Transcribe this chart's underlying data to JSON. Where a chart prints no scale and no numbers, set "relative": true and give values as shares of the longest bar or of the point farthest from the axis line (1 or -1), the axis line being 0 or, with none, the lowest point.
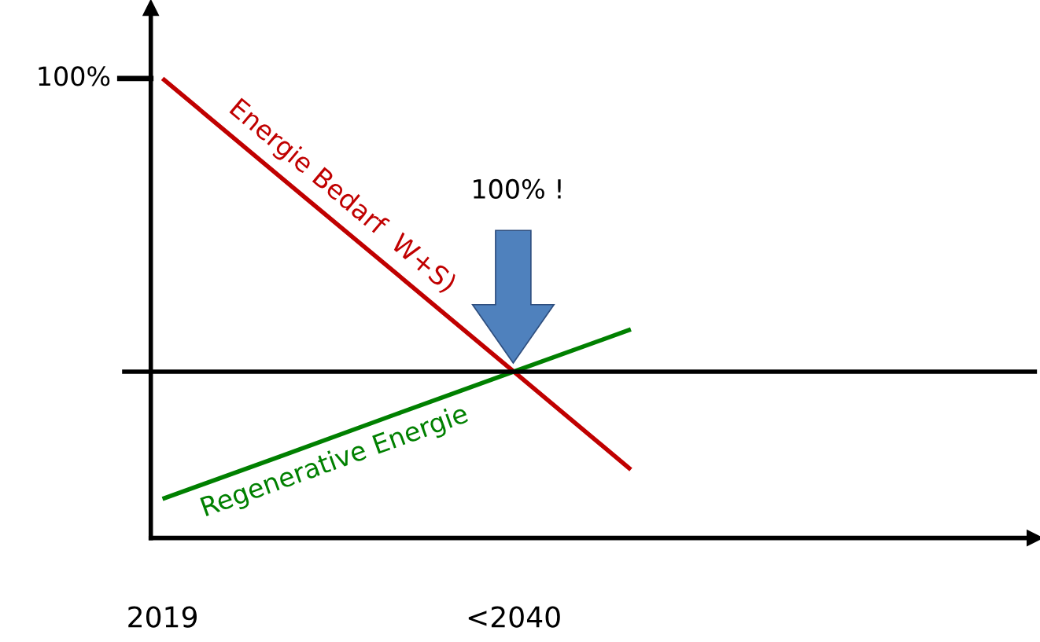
{
  "chart_data": {
    "type": "line",
    "relative": true,
    "legend": false,
    "grid": false,
    "marker": "none",
    "line_style": "solid",
    "categories": [
      "2019",
      null,
      null,
      "<2040",
      null,
      null,
      null,
      null
    ],
    "series": [
      {
        "name": "Energie Bedarf  W+S)",
        "color": "#c00000",
        "values": [
          1.0,
          0.787,
          0.575,
          0.362,
          0.149,
          null,
          null,
          null
        ]
      },
      {
        "name": "Regenerative Energie",
        "color": "#008000",
        "values": [
          0.085,
          0.177,
          0.27,
          0.362,
          0.454,
          null,
          null,
          null
        ]
      }
    ],
    "ref_lines": [
      {
        "axis": "y",
        "value": 0.362,
        "color": "#000000"
      }
    ],
    "annotations": [
      "100%",
      "100% !"
    ]
  }
}
